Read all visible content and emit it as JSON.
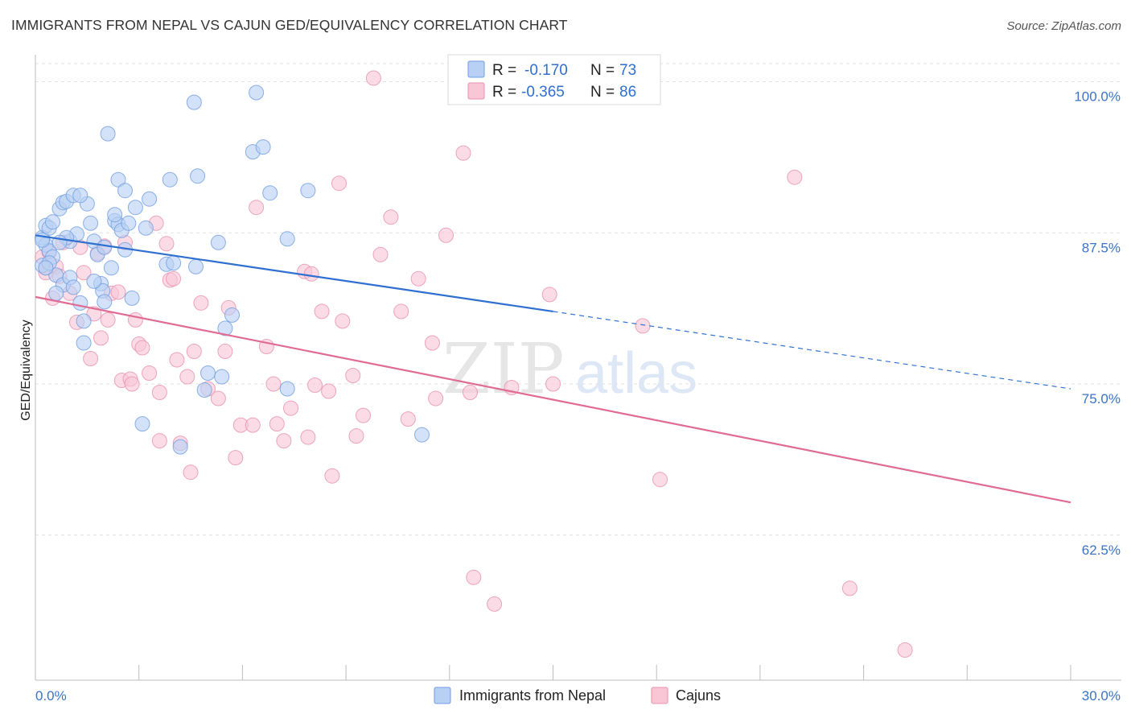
{
  "title": "IMMIGRANTS FROM NEPAL VS CAJUN GED/EQUIVALENCY CORRELATION CHART",
  "source": "Source: ZipAtlas.com",
  "watermark": {
    "part1": "ZIP",
    "part2": "atlas"
  },
  "legend": {
    "r_label": "R =",
    "n_label": "N =",
    "rows": [
      {
        "r": "-0.170",
        "n": "73",
        "fill": "#b8d0f4",
        "stroke": "#6f9de0"
      },
      {
        "r": "-0.365",
        "n": "86",
        "fill": "#f9c6d6",
        "stroke": "#e891ad"
      }
    ]
  },
  "bottom_legend": [
    {
      "label": "Immigrants from Nepal",
      "fill": "#b8d0f4",
      "stroke": "#6f9de0"
    },
    {
      "label": "Cajuns",
      "fill": "#f9c6d6",
      "stroke": "#e891ad"
    }
  ],
  "chart_data": {
    "type": "scatter",
    "title": "IMMIGRANTS FROM NEPAL VS CAJUN GED/EQUIVALENCY CORRELATION CHART",
    "xlabel": "",
    "ylabel": "GED/Equivalency",
    "xlim": [
      0,
      30
    ],
    "ylim": [
      50.5,
      101.5
    ],
    "x_tick_labels": [
      "0.0%",
      "30.0%"
    ],
    "y_ticks": [
      62.5,
      75.0,
      87.5,
      100.0
    ],
    "y_tick_labels": [
      "62.5%",
      "75.0%",
      "87.5%",
      "100.0%"
    ],
    "grid": "horizontal dashed",
    "legend_position": "top-center",
    "series": [
      {
        "name": "Immigrants from Nepal",
        "color": "#6f9de0",
        "fill": "#b8d0f4",
        "line_color": "#2f6fcf",
        "r": -0.17,
        "n": 73,
        "trend": {
          "x0": 0.0,
          "y0": 87.3,
          "x1": 15.0,
          "y1": 81.0,
          "x_dash_end": 30.0,
          "y_dash_end": 74.6
        },
        "points": [
          [
            0.2,
            84.8
          ],
          [
            0.2,
            87.1
          ],
          [
            0.3,
            86.5
          ],
          [
            0.3,
            88.1
          ],
          [
            0.4,
            87.9
          ],
          [
            0.4,
            86.0
          ],
          [
            0.5,
            88.4
          ],
          [
            0.6,
            84.0
          ],
          [
            0.7,
            89.5
          ],
          [
            0.8,
            90.0
          ],
          [
            0.8,
            83.2
          ],
          [
            0.9,
            90.1
          ],
          [
            1.0,
            86.8
          ],
          [
            1.1,
            90.6
          ],
          [
            1.2,
            87.4
          ],
          [
            1.3,
            81.7
          ],
          [
            1.4,
            78.4
          ],
          [
            1.5,
            89.9
          ],
          [
            1.6,
            88.3
          ],
          [
            1.7,
            86.8
          ],
          [
            1.8,
            85.7
          ],
          [
            1.9,
            83.3
          ],
          [
            1.95,
            82.7
          ],
          [
            2.0,
            81.8
          ],
          [
            2.1,
            95.7
          ],
          [
            2.2,
            84.6
          ],
          [
            2.3,
            88.5
          ],
          [
            2.4,
            88.2
          ],
          [
            2.3,
            89.0
          ],
          [
            2.4,
            91.9
          ],
          [
            2.5,
            87.7
          ],
          [
            2.6,
            86.1
          ],
          [
            2.6,
            91.0
          ],
          [
            2.7,
            88.3
          ],
          [
            2.8,
            82.1
          ],
          [
            2.9,
            89.6
          ],
          [
            3.1,
            71.7
          ],
          [
            3.2,
            87.9
          ],
          [
            3.3,
            90.3
          ],
          [
            3.8,
            84.9
          ],
          [
            3.9,
            91.9
          ],
          [
            4.0,
            85.0
          ],
          [
            4.2,
            69.8
          ],
          [
            4.6,
            98.3
          ],
          [
            4.65,
            84.7
          ],
          [
            4.7,
            92.2
          ],
          [
            4.9,
            74.5
          ],
          [
            5.0,
            75.9
          ],
          [
            5.3,
            86.7
          ],
          [
            5.4,
            75.6
          ],
          [
            5.5,
            79.6
          ],
          [
            5.7,
            80.7
          ],
          [
            6.3,
            94.2
          ],
          [
            6.4,
            99.1
          ],
          [
            6.6,
            94.6
          ],
          [
            6.8,
            90.8
          ],
          [
            7.3,
            87.0
          ],
          [
            7.3,
            74.6
          ],
          [
            7.9,
            91.0
          ],
          [
            11.2,
            70.8
          ],
          [
            1.3,
            90.6
          ],
          [
            0.9,
            87.1
          ],
          [
            2.0,
            86.3
          ],
          [
            0.6,
            82.5
          ],
          [
            0.5,
            85.5
          ],
          [
            1.0,
            83.8
          ],
          [
            1.1,
            83.0
          ],
          [
            1.7,
            83.5
          ],
          [
            0.4,
            85.0
          ],
          [
            0.7,
            86.7
          ],
          [
            1.4,
            80.2
          ],
          [
            0.3,
            84.6
          ],
          [
            0.2,
            86.9
          ]
        ]
      },
      {
        "name": "Cajuns",
        "color": "#e891ad",
        "fill": "#f9c6d6",
        "line_color": "#e06b94",
        "r": -0.365,
        "n": 86,
        "trend": {
          "x0": 0.0,
          "y0": 82.2,
          "x1": 30.0,
          "y1": 65.2
        },
        "points": [
          [
            0.2,
            85.5
          ],
          [
            0.3,
            84.2
          ],
          [
            0.4,
            85.9
          ],
          [
            0.5,
            82.1
          ],
          [
            0.6,
            84.7
          ],
          [
            0.7,
            83.9
          ],
          [
            0.8,
            86.7
          ],
          [
            1.0,
            82.5
          ],
          [
            1.2,
            80.1
          ],
          [
            1.3,
            86.3
          ],
          [
            1.4,
            84.2
          ],
          [
            1.6,
            77.1
          ],
          [
            1.7,
            80.8
          ],
          [
            1.8,
            85.8
          ],
          [
            1.9,
            78.8
          ],
          [
            2.0,
            86.4
          ],
          [
            2.1,
            80.3
          ],
          [
            2.2,
            82.5
          ],
          [
            2.4,
            82.6
          ],
          [
            2.5,
            75.3
          ],
          [
            2.6,
            86.7
          ],
          [
            2.75,
            75.4
          ],
          [
            2.8,
            75.0
          ],
          [
            2.9,
            80.3
          ],
          [
            3.0,
            78.3
          ],
          [
            3.1,
            78.0
          ],
          [
            3.3,
            75.9
          ],
          [
            3.5,
            88.3
          ],
          [
            3.6,
            74.3
          ],
          [
            3.6,
            70.3
          ],
          [
            3.8,
            86.6
          ],
          [
            3.9,
            83.6
          ],
          [
            4.0,
            83.7
          ],
          [
            4.1,
            77.0
          ],
          [
            4.2,
            70.1
          ],
          [
            4.4,
            75.6
          ],
          [
            4.5,
            67.7
          ],
          [
            4.6,
            77.7
          ],
          [
            4.8,
            81.7
          ],
          [
            5.0,
            74.6
          ],
          [
            5.3,
            73.8
          ],
          [
            5.5,
            77.7
          ],
          [
            5.6,
            81.3
          ],
          [
            5.8,
            68.9
          ],
          [
            5.95,
            71.6
          ],
          [
            6.3,
            71.6
          ],
          [
            6.4,
            89.6
          ],
          [
            6.7,
            78.1
          ],
          [
            6.9,
            75.0
          ],
          [
            7.0,
            71.7
          ],
          [
            7.2,
            70.3
          ],
          [
            7.4,
            73.0
          ],
          [
            7.8,
            84.3
          ],
          [
            7.9,
            70.6
          ],
          [
            8.0,
            84.1
          ],
          [
            8.1,
            74.9
          ],
          [
            8.3,
            81.0
          ],
          [
            8.5,
            74.4
          ],
          [
            8.6,
            67.4
          ],
          [
            8.8,
            91.6
          ],
          [
            8.9,
            80.2
          ],
          [
            9.2,
            75.7
          ],
          [
            9.3,
            70.7
          ],
          [
            9.5,
            72.4
          ],
          [
            9.8,
            100.3
          ],
          [
            10.0,
            85.7
          ],
          [
            10.3,
            88.8
          ],
          [
            10.6,
            81.0
          ],
          [
            10.8,
            72.1
          ],
          [
            11.1,
            83.7
          ],
          [
            11.5,
            78.4
          ],
          [
            11.6,
            73.8
          ],
          [
            11.9,
            87.3
          ],
          [
            12.4,
            94.1
          ],
          [
            12.6,
            74.3
          ],
          [
            12.7,
            59.0
          ],
          [
            13.3,
            56.8
          ],
          [
            13.8,
            74.7
          ],
          [
            14.9,
            82.4
          ],
          [
            15.0,
            75.0
          ],
          [
            17.6,
            79.8
          ],
          [
            18.1,
            67.1
          ],
          [
            22.0,
            92.1
          ],
          [
            23.6,
            58.1
          ],
          [
            25.2,
            53.0
          ],
          [
            0.3,
            84.6
          ]
        ]
      }
    ]
  }
}
